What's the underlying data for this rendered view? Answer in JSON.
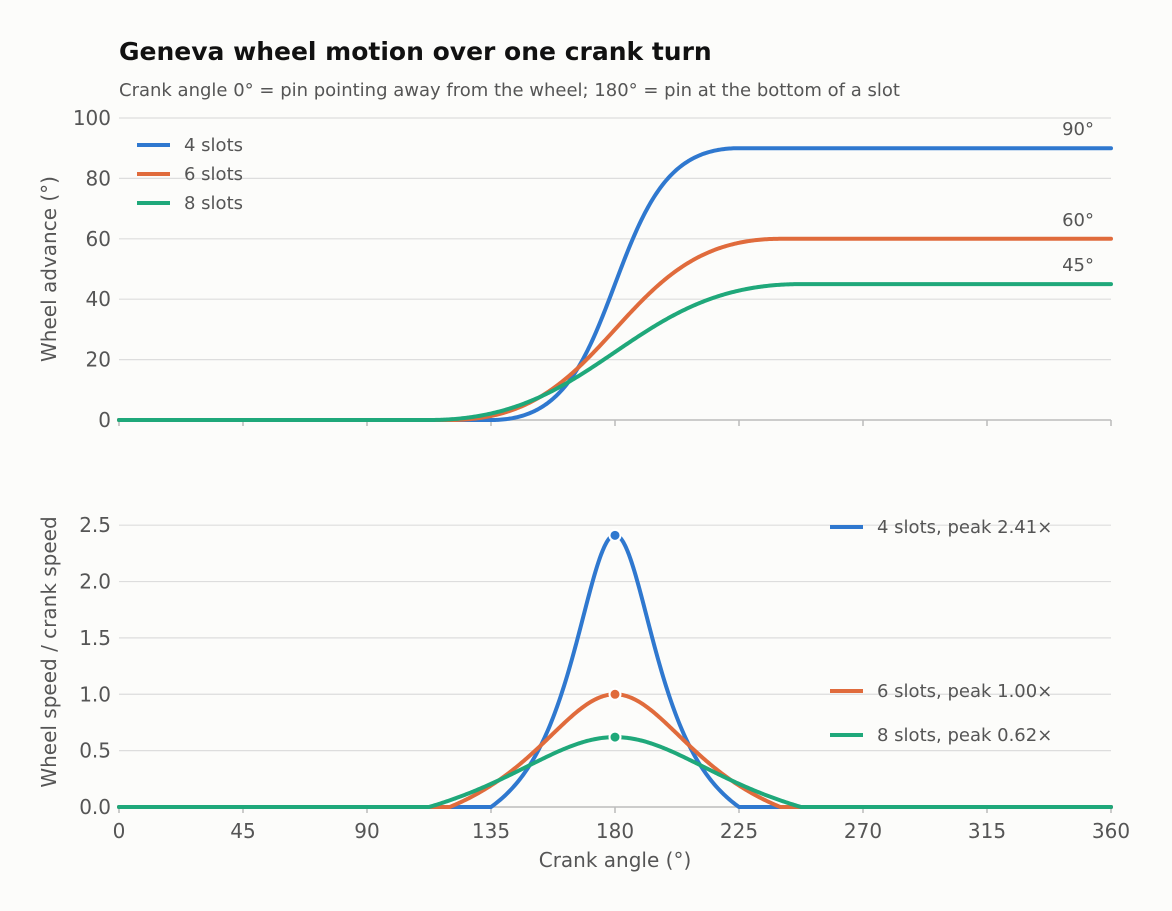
{
  "title": "Geneva wheel motion over one crank turn",
  "subtitle": "Crank angle 0° = pin pointing away from the wheel; 180° = pin at the bottom of a slot",
  "colors": {
    "4": "#2f78cf",
    "6": "#e06b3c",
    "8": "#1fa87a"
  },
  "chart_data": [
    {
      "type": "line",
      "title": "",
      "xlabel": "",
      "ylabel": "Wheel advance (°)",
      "xlim": [
        0,
        360
      ],
      "ylim": [
        0,
        100
      ],
      "x_ticks": [
        0,
        45,
        90,
        135,
        180,
        225,
        270,
        315,
        360
      ],
      "y_ticks": [
        0,
        20,
        40,
        60,
        80,
        100
      ],
      "y_tick_labels": [
        "0",
        "20",
        "40",
        "60",
        "80",
        "100"
      ],
      "grid": true,
      "legend": "top-left",
      "series": [
        {
          "name": "4 slots",
          "slots": 4,
          "color": "#2f78cf",
          "x": [
            0,
            135,
            145,
            155,
            165,
            170,
            175,
            180,
            185,
            190,
            195,
            205,
            215,
            225,
            360
          ],
          "y": [
            0,
            0,
            0.6,
            3.6,
            12.2,
            20.2,
            31.4,
            45,
            58.6,
            69.8,
            77.8,
            86.4,
            89.4,
            90,
            90
          ]
        },
        {
          "name": "6 slots",
          "slots": 6,
          "color": "#e06b3c",
          "x": [
            0,
            120,
            135,
            150,
            165,
            180,
            195,
            210,
            225,
            240,
            360
          ],
          "y": [
            0,
            0,
            1.2,
            6.3,
            15.9,
            30,
            44.1,
            53.7,
            58.8,
            60,
            60
          ]
        },
        {
          "name": "8 slots",
          "slots": 8,
          "color": "#1fa87a",
          "x": [
            0,
            112.5,
            135,
            157.5,
            180,
            202.5,
            225,
            247.5,
            360
          ],
          "y": [
            0,
            0,
            2.3,
            9.8,
            22.5,
            35.2,
            42.7,
            45,
            45
          ]
        }
      ],
      "end_labels": [
        "90°",
        "60°",
        "45°"
      ]
    },
    {
      "type": "line",
      "title": "",
      "xlabel": "Crank angle (°)",
      "ylabel": "Wheel speed / crank speed",
      "xlim": [
        0,
        360
      ],
      "ylim": [
        0,
        2.75
      ],
      "x_ticks": [
        0,
        45,
        90,
        135,
        180,
        225,
        270,
        315,
        360
      ],
      "x_tick_labels": [
        "0",
        "45",
        "90",
        "135",
        "180",
        "225",
        "270",
        "315",
        "360"
      ],
      "y_ticks": [
        0,
        0.5,
        1.0,
        1.5,
        2.0,
        2.5
      ],
      "y_tick_labels": [
        "0.0",
        "0.5",
        "1.0",
        "1.5",
        "2.0",
        "2.5"
      ],
      "grid": true,
      "legend": "right",
      "series": [
        {
          "name": "4 slots, peak 2.41×",
          "slots": 4,
          "color": "#2f78cf",
          "peak": {
            "x": 180,
            "y": 2.41
          },
          "x": [
            0,
            135,
            140,
            150,
            160,
            170,
            175,
            180,
            185,
            190,
            200,
            210,
            220,
            225,
            360
          ],
          "y": [
            0,
            0,
            0.06,
            0.26,
            0.63,
            1.38,
            1.93,
            2.41,
            1.93,
            1.38,
            0.63,
            0.26,
            0.06,
            0,
            0
          ]
        },
        {
          "name": "6 slots, peak 1.00×",
          "slots": 6,
          "color": "#e06b3c",
          "peak": {
            "x": 180,
            "y": 1.0
          },
          "x": [
            0,
            120,
            130,
            140,
            150,
            160,
            170,
            180,
            190,
            200,
            210,
            220,
            230,
            240,
            360
          ],
          "y": [
            0,
            0,
            0.08,
            0.2,
            0.37,
            0.58,
            0.83,
            1.0,
            0.83,
            0.58,
            0.37,
            0.2,
            0.08,
            0,
            0
          ]
        },
        {
          "name": "8 slots, peak 0.62×",
          "slots": 8,
          "color": "#1fa87a",
          "peak": {
            "x": 180,
            "y": 0.62
          },
          "x": [
            0,
            112.5,
            125,
            135,
            150,
            160,
            170,
            180,
            190,
            200,
            210,
            225,
            235,
            247.5,
            360
          ],
          "y": [
            0,
            0,
            0.08,
            0.17,
            0.32,
            0.43,
            0.55,
            0.62,
            0.55,
            0.43,
            0.32,
            0.17,
            0.08,
            0,
            0
          ]
        }
      ]
    }
  ]
}
